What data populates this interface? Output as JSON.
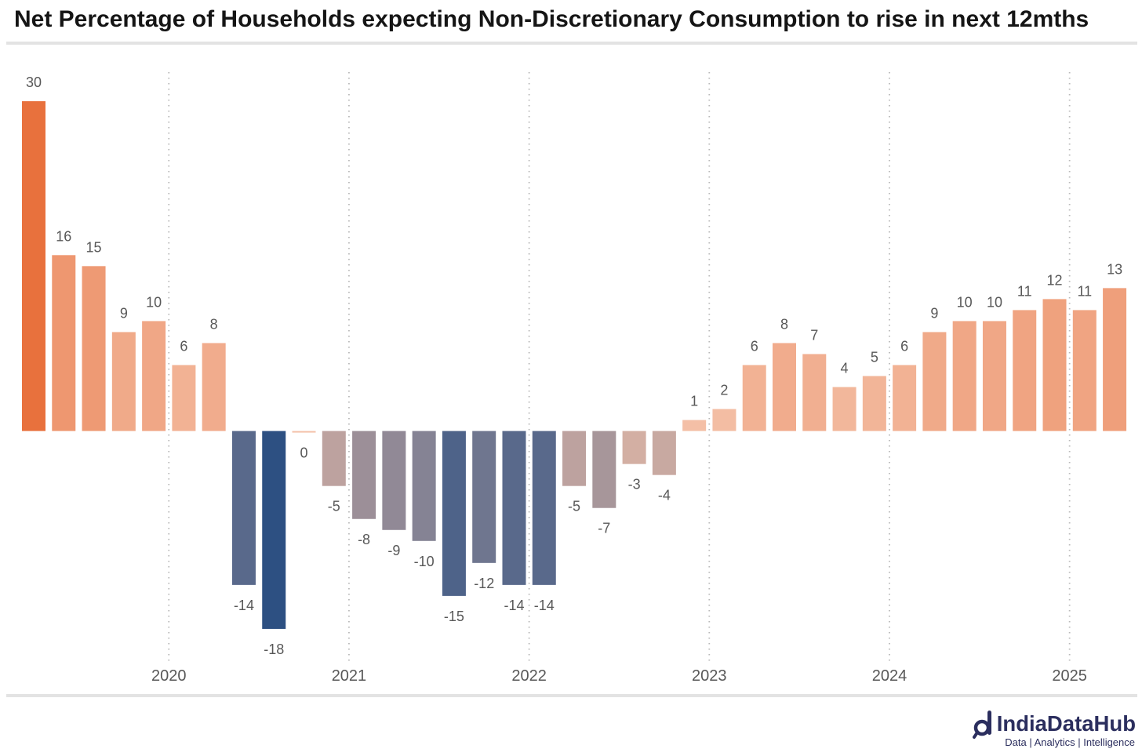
{
  "chart_data": {
    "type": "bar",
    "title": "Net Percentage of Households expecting Non-Discretionary Consumption to rise in next 12mths",
    "xlabel": "",
    "ylabel": "",
    "x_ticks": [
      "2020",
      "2021",
      "2022",
      "2023",
      "2024",
      "2025"
    ],
    "values": [
      30,
      16,
      15,
      9,
      10,
      6,
      8,
      -14,
      -18,
      0,
      -5,
      -8,
      -9,
      -10,
      -15,
      -12,
      -14,
      -14,
      -5,
      -7,
      -3,
      -4,
      1,
      2,
      6,
      8,
      7,
      4,
      5,
      6,
      9,
      10,
      10,
      11,
      12,
      11,
      13
    ],
    "ylim": [
      -21,
      33
    ],
    "grid": {
      "x": true,
      "y": false
    },
    "legend": false,
    "color_scale": {
      "min": "#2D5082",
      "center": "#F4C2AA",
      "max": "#E8713D"
    }
  },
  "logo": {
    "icon": "indiadatahub-logo-icon",
    "name": "IndiaDataHub",
    "tagline": "Data | Analytics | Intelligence"
  },
  "colors": {
    "background": "#FFFFFF",
    "title": "#151515",
    "text": "#585858",
    "gridline": "#B8B8B8",
    "rule": "#E3E3E3",
    "brand": "#2B2E5E"
  }
}
